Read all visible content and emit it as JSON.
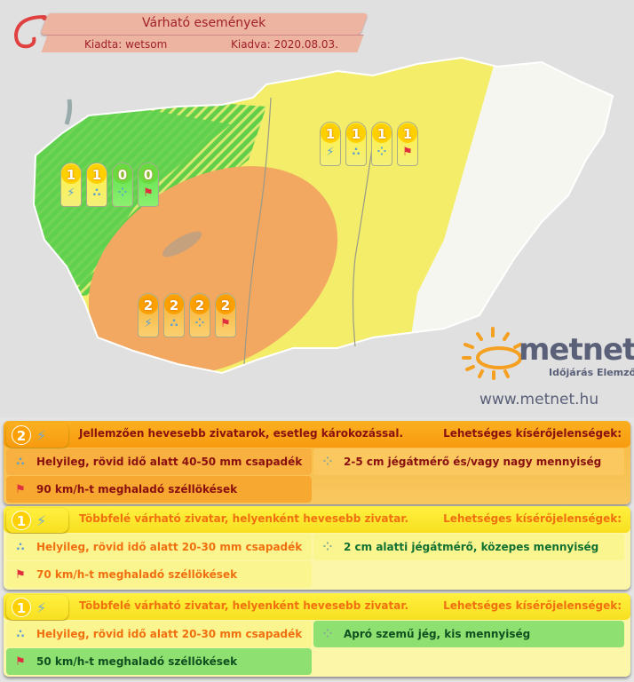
{
  "header": {
    "title": "Várható események",
    "issued_by": "Kiadta: wetsom",
    "issued_date": "Kiadva: 2020.08.03."
  },
  "colors": {
    "level0": "#5ed84a",
    "level1": "#f5ef3c",
    "level2": "#f4a640",
    "no_warning": "#f4f4f4",
    "header": "#eeb4a2"
  },
  "map": {
    "badge_groups": [
      {
        "region": "north-east",
        "badges": [
          {
            "level": "1",
            "icon": "thunderstorm-icon"
          },
          {
            "level": "1",
            "icon": "rain-icon"
          },
          {
            "level": "1",
            "icon": "hail-icon"
          },
          {
            "level": "1",
            "icon": "wind-icon"
          }
        ]
      },
      {
        "region": "west",
        "badges": [
          {
            "level": "1",
            "icon": "thunderstorm-icon"
          },
          {
            "level": "1",
            "icon": "rain-icon"
          },
          {
            "level": "0",
            "icon": "hail-icon"
          },
          {
            "level": "0",
            "icon": "wind-icon"
          }
        ]
      },
      {
        "region": "south-central",
        "badges": [
          {
            "level": "2",
            "icon": "thunderstorm-icon"
          },
          {
            "level": "2",
            "icon": "rain-icon"
          },
          {
            "level": "2",
            "icon": "hail-icon"
          },
          {
            "level": "2",
            "icon": "wind-icon"
          }
        ]
      }
    ]
  },
  "logo": {
    "name": "metnet",
    "tagline": "Időjárás Elemző",
    "url": "www.metnet.hu"
  },
  "panels": [
    {
      "level": "2",
      "description": "Jellemzően hevesebb zivatarok, esetleg károkozással.",
      "accompanying": "Lehetséges kísérőjelenségek:",
      "rain": "Helyileg, rövid idő alatt 40-50 mm csapadék",
      "hail": "2-5 cm jégátmérő és/vagy nagy mennyiség",
      "wind": "90 km/h-t meghaladó széllökések"
    },
    {
      "level": "1",
      "description": "Többfelé várható zivatar, helyenként hevesebb zivatar.",
      "accompanying": "Lehetséges kísérőjelenségek:",
      "rain": "Helyileg, rövid idő alatt 20-30 mm csapadék",
      "hail": "2 cm alatti jégátmérő, közepes mennyiség",
      "wind": "70 km/h-t meghaladó széllökések"
    },
    {
      "level": "1",
      "description": "Többfelé várható zivatar, helyenként hevesebb zivatar.",
      "accompanying": "Lehetséges kísérőjelenségek:",
      "rain": "Helyileg, rövid idő alatt 20-30 mm csapadék",
      "hail": "Apró szemű jég, kis mennyiség",
      "wind": "50 km/h-t meghaladó széllökések"
    }
  ]
}
